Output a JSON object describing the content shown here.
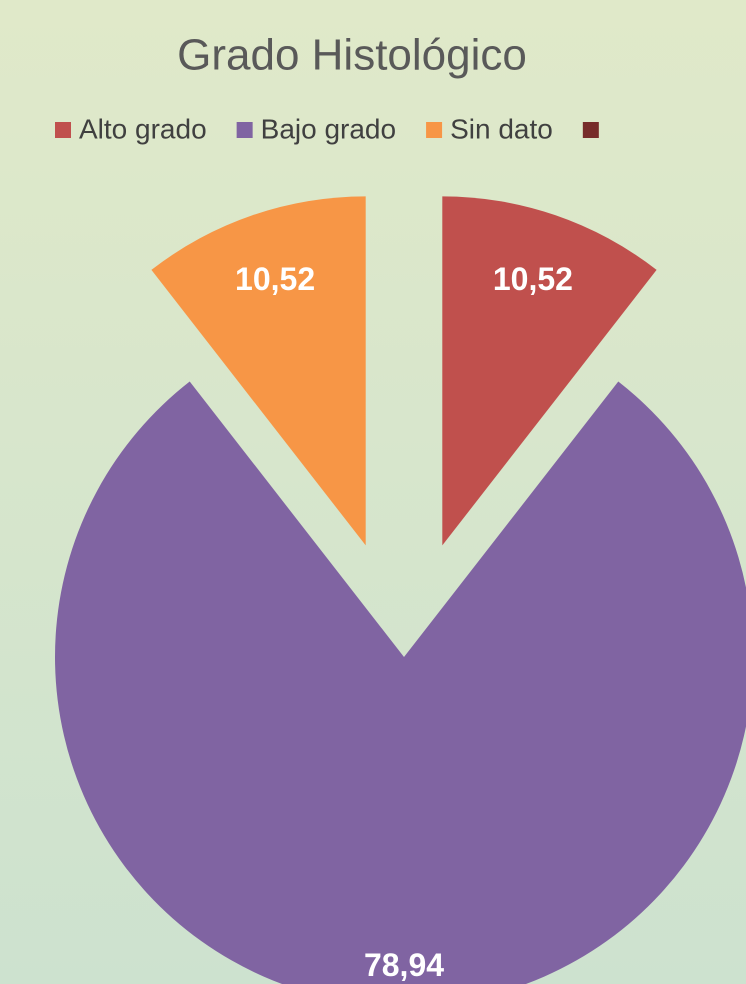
{
  "chart_data": {
    "type": "pie",
    "title": "Grado Histológico",
    "categories": [
      "Alto grado",
      "Bajo grado",
      "Sin dato",
      null
    ],
    "values": [
      10.52,
      78.94,
      10.52,
      0
    ],
    "value_labels": [
      "10,52",
      "78,94",
      "10,52",
      null
    ],
    "colors": [
      "#c0504d",
      "#8064a2",
      "#f79646",
      "#772c2a"
    ],
    "legend": "top"
  }
}
